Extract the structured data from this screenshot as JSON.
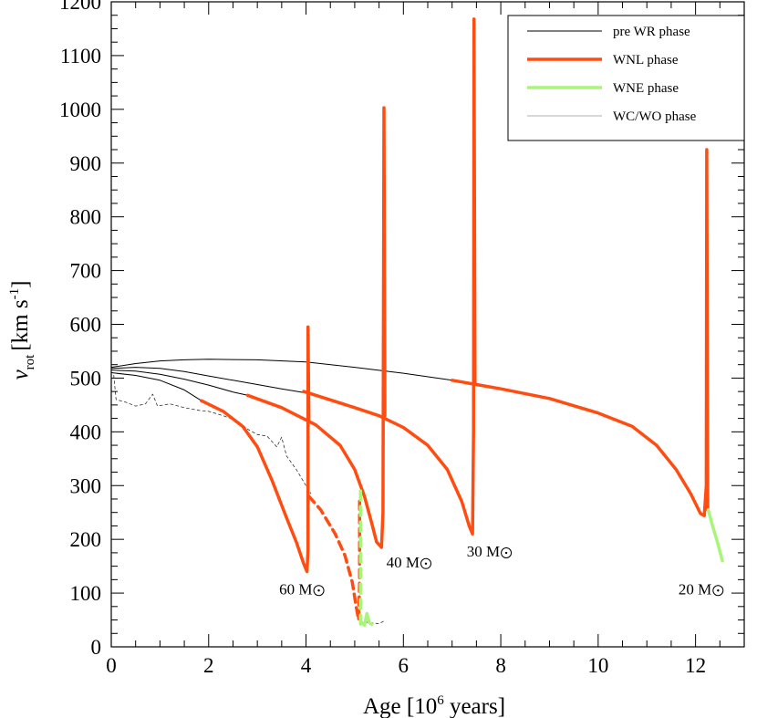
{
  "chart_data": {
    "type": "line",
    "title": "",
    "xlabel": "Age [10",
    "xlabel_sup": "6",
    "xlabel_tail": " years]",
    "ylabel_v": "v",
    "ylabel_sub": "rot",
    "ylabel_unit": "[km s",
    "ylabel_sup": "-1",
    "ylabel_close": "]",
    "xlim": [
      0,
      13
    ],
    "ylim": [
      0,
      1200
    ],
    "xticks": [
      0,
      2,
      4,
      6,
      8,
      10,
      12
    ],
    "yticks": [
      0,
      100,
      200,
      300,
      400,
      500,
      600,
      700,
      800,
      900,
      1000,
      1100,
      1200
    ],
    "grid": false,
    "legend_position": "top-right",
    "legend": [
      {
        "label": "pre WR phase",
        "color": "#000000",
        "width": 1
      },
      {
        "label": "WNL phase",
        "color": "#ff4d12",
        "width": 3.5
      },
      {
        "label": "WNE phase",
        "color": "#a8f57a",
        "width": 3.5
      },
      {
        "label": "WC/WO phase",
        "color": "#b0b0b0",
        "width": 1
      }
    ],
    "annotations": [
      {
        "text": "60 M",
        "x": 3.45,
        "y": 98
      },
      {
        "text": "40 M",
        "x": 5.65,
        "y": 148
      },
      {
        "text": "30 M",
        "x": 7.3,
        "y": 168
      },
      {
        "text": "20 M",
        "x": 11.65,
        "y": 98
      }
    ],
    "series": [
      {
        "name": "pre WR phase",
        "color": "#000000",
        "width": 1,
        "dash": "",
        "segments": [
          [
            [
              0,
              510
            ],
            [
              0.5,
              505
            ],
            [
              1,
              496
            ],
            [
              1.5,
              478
            ],
            [
              1.85,
              458
            ]
          ],
          [
            [
              0,
              515
            ],
            [
              0.5,
              513
            ],
            [
              1,
              507
            ],
            [
              1.5,
              498
            ],
            [
              2,
              487
            ],
            [
              2.5,
              474
            ],
            [
              2.8,
              468
            ]
          ],
          [
            [
              0,
              518
            ],
            [
              0.5,
              520
            ],
            [
              1,
              518
            ],
            [
              1.5,
              512
            ],
            [
              2,
              504
            ],
            [
              2.5,
              496
            ],
            [
              3,
              488
            ],
            [
              3.5,
              480
            ],
            [
              3.95,
              473
            ]
          ],
          [
            [
              0,
              520
            ],
            [
              0.5,
              527
            ],
            [
              1,
              532
            ],
            [
              1.5,
              534
            ],
            [
              2,
              535
            ],
            [
              3,
              534
            ],
            [
              4,
              530
            ],
            [
              5,
              520
            ],
            [
              6,
              509
            ],
            [
              7,
              496
            ]
          ]
        ]
      },
      {
        "name": "WC/WO phase",
        "color": "#333333",
        "width": 0.8,
        "dash": "3,3",
        "segments": [
          [
            [
              0.05,
              505
            ],
            [
              0.1,
              460
            ],
            [
              0.3,
              455
            ],
            [
              0.5,
              448
            ],
            [
              0.7,
              452
            ],
            [
              0.85,
              470
            ],
            [
              0.95,
              448
            ],
            [
              1.2,
              452
            ],
            [
              1.5,
              445
            ],
            [
              1.8,
              440
            ],
            [
              2.0,
              438
            ],
            [
              2.3,
              430
            ],
            [
              2.6,
              420
            ],
            [
              2.8,
              405
            ],
            [
              3.0,
              395
            ],
            [
              3.2,
              392
            ],
            [
              3.4,
              372
            ],
            [
              3.5,
              390
            ],
            [
              3.6,
              355
            ],
            [
              3.8,
              330
            ],
            [
              4.0,
              300
            ],
            [
              4.1,
              285
            ]
          ],
          [
            [
              5.1,
              48
            ],
            [
              5.3,
              45
            ],
            [
              5.5,
              43
            ],
            [
              5.6,
              48
            ]
          ]
        ]
      },
      {
        "name": "WNL phase",
        "color": "#ff4d12",
        "width": 3.5,
        "dash": "",
        "segments": [
          [
            [
              1.85,
              458
            ],
            [
              2.3,
              438
            ],
            [
              2.7,
              410
            ],
            [
              3.0,
              372
            ],
            [
              3.3,
              310
            ],
            [
              3.6,
              240
            ],
            [
              3.8,
              195
            ],
            [
              3.95,
              155
            ],
            [
              4.02,
              140
            ],
            [
              4.04,
              180
            ],
            [
              4.04,
              595
            ],
            [
              4.06,
              420
            ]
          ],
          [
            [
              2.8,
              468
            ],
            [
              3.5,
              445
            ],
            [
              4.2,
              413
            ],
            [
              4.7,
              375
            ],
            [
              5.0,
              330
            ],
            [
              5.2,
              280
            ],
            [
              5.35,
              230
            ],
            [
              5.45,
              195
            ],
            [
              5.55,
              185
            ],
            [
              5.58,
              250
            ],
            [
              5.6,
              1003
            ],
            [
              5.62,
              430
            ]
          ],
          [
            [
              3.95,
              475
            ],
            [
              5,
              445
            ],
            [
              5.5,
              430
            ],
            [
              6.0,
              408
            ],
            [
              6.5,
              375
            ],
            [
              6.9,
              330
            ],
            [
              7.2,
              270
            ],
            [
              7.35,
              225
            ],
            [
              7.42,
              210
            ],
            [
              7.44,
              400
            ],
            [
              7.45,
              1168
            ],
            [
              7.47,
              490
            ]
          ],
          [
            [
              7,
              496
            ],
            [
              7.5,
              488
            ],
            [
              8,
              480
            ],
            [
              9,
              462
            ],
            [
              10,
              435
            ],
            [
              10.7,
              410
            ],
            [
              11.2,
              375
            ],
            [
              11.6,
              330
            ],
            [
              11.9,
              285
            ],
            [
              12.1,
              248
            ],
            [
              12.18,
              244
            ],
            [
              12.22,
              300
            ],
            [
              12.23,
              925
            ],
            [
              12.25,
              255
            ]
          ]
        ]
      },
      {
        "name": "WNL phase dashed",
        "color": "#ff4d12",
        "width": 3.5,
        "dash": "9,6",
        "segments": [
          [
            [
              4.06,
              280
            ],
            [
              4.3,
              255
            ],
            [
              4.6,
              210
            ],
            [
              4.8,
              170
            ],
            [
              4.95,
              120
            ],
            [
              5.03,
              75
            ],
            [
              5.08,
              50
            ],
            [
              5.1,
              120
            ],
            [
              5.1,
              280
            ]
          ]
        ]
      },
      {
        "name": "WNE phase",
        "color": "#a8f57a",
        "width": 3.5,
        "dash": "",
        "segments": [
          [
            [
              12.26,
              255
            ],
            [
              12.35,
              225
            ],
            [
              12.45,
              195
            ],
            [
              12.55,
              160
            ]
          ],
          [
            [
              5.15,
              45
            ],
            [
              5.2,
              40
            ],
            [
              5.25,
              62
            ],
            [
              5.3,
              45
            ],
            [
              5.35,
              42
            ]
          ]
        ]
      },
      {
        "name": "WNE phase dashed",
        "color": "#a8f57a",
        "width": 3.5,
        "dash": "10,7",
        "segments": [
          [
            [
              5.12,
              290
            ],
            [
              5.12,
              40
            ]
          ]
        ]
      }
    ]
  }
}
